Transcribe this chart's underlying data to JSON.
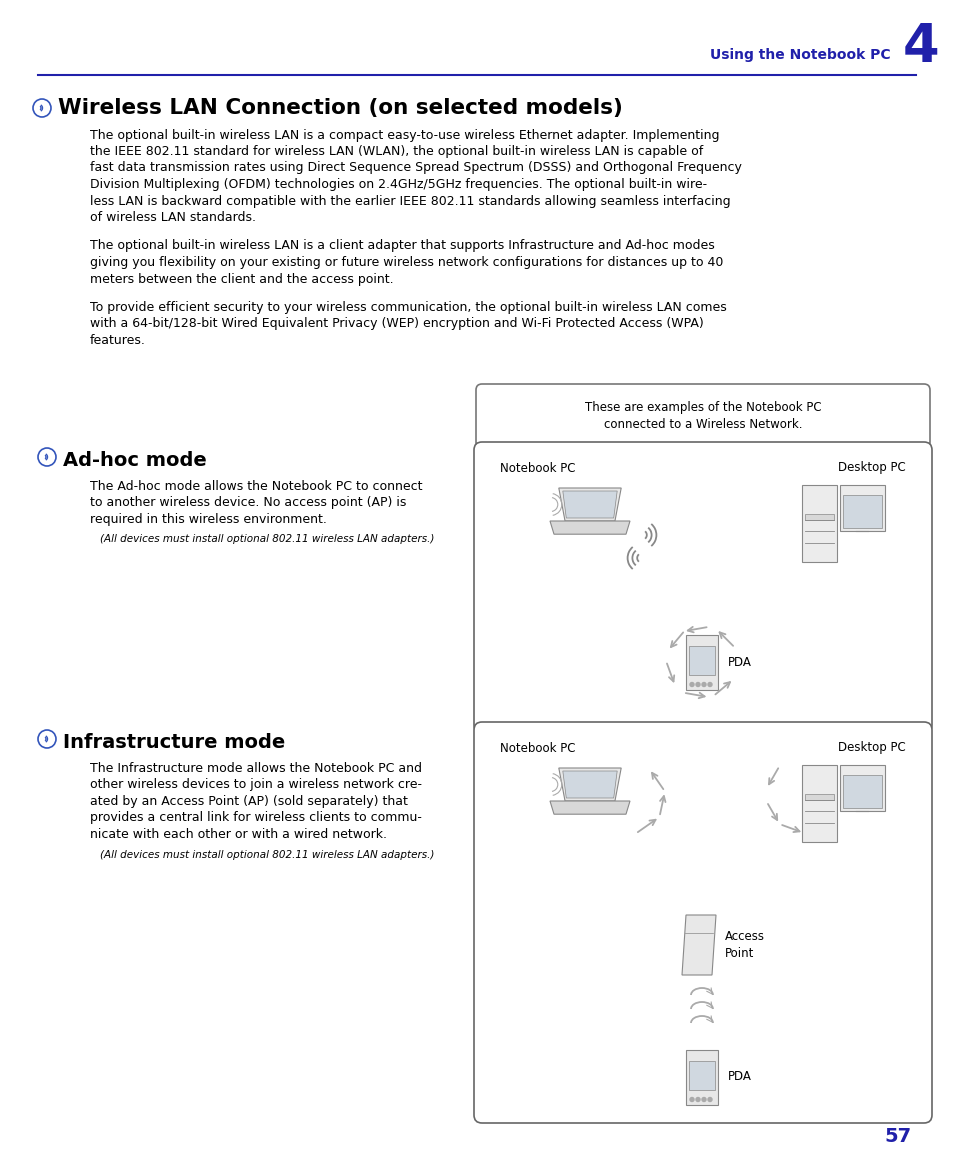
{
  "page_title": "Using the Notebook PC",
  "chapter_num": "4",
  "main_title": "Wireless LAN Connection (on selected models)",
  "para1_lines": [
    "The optional built-in wireless LAN is a compact easy-to-use wireless Ethernet adapter. Implementing",
    "the IEEE 802.11 standard for wireless LAN (WLAN), the optional built-in wireless LAN is capable of",
    "fast data transmission rates using Direct Sequence Spread Spectrum (DSSS) and Orthogonal Frequency",
    "Division Multiplexing (OFDM) technologies on 2.4GHz/5GHz frequencies. The optional built-in wire-",
    "less LAN is backward compatible with the earlier IEEE 802.11 standards allowing seamless interfacing",
    "of wireless LAN standards."
  ],
  "para2_lines": [
    "The optional built-in wireless LAN is a client adapter that supports Infrastructure and Ad-hoc modes",
    "giving you flexibility on your existing or future wireless network configurations for distances up to 40",
    "meters between the client and the access point."
  ],
  "para3_lines": [
    "To provide efficient security to your wireless communication, the optional built-in wireless LAN comes",
    "with a 64-bit/128-bit Wired Equivalent Privacy (WEP) encryption and Wi-Fi Protected Access (WPA)",
    "features."
  ],
  "callout_text": "These are examples of the Notebook PC\nconnected to a Wireless Network.",
  "adhoc_title": "Ad-hoc mode",
  "adhoc_lines": [
    "The Ad-hoc mode allows the Notebook PC to connect",
    "to another wireless device. No access point (AP) is",
    "required in this wireless environment."
  ],
  "adhoc_note": "(All devices must install optional 802.11 wireless LAN adapters.)",
  "infra_title": "Infrastructure mode",
  "infra_lines": [
    "The Infrastructure mode allows the Notebook PC and",
    "other wireless devices to join a wireless network cre-",
    "ated by an Access Point (AP) (sold separately) that",
    "provides a central link for wireless clients to commu-",
    "nicate with each other or with a wired network."
  ],
  "infra_note": "(All devices must install optional 802.11 wireless LAN adapters.)",
  "page_num": "57",
  "bg_color": "#ffffff",
  "text_color": "#000000",
  "header_color": "#2020aa",
  "box_color": "#555555",
  "icon_color": "#aaaaaa",
  "arrow_color": "#999999"
}
